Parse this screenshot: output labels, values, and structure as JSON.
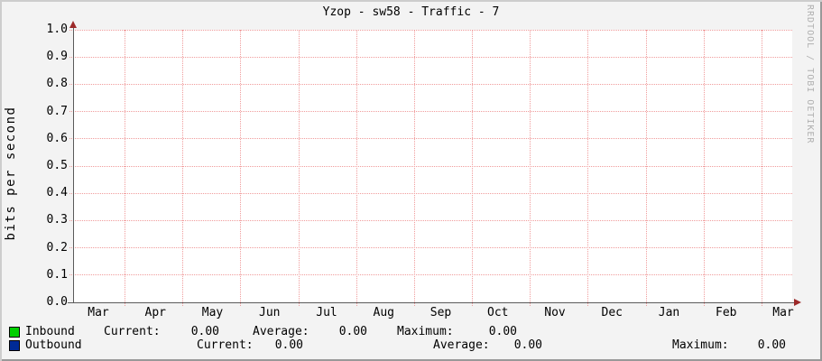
{
  "title": "Yzop - sw58 - Traffic - 7",
  "watermark": "RRDTOOL / TOBI OETIKER",
  "colors": {
    "background": "#f3f3f3",
    "canvas": "#ffffff",
    "grid": "#f09c9c",
    "axis": "#5a5a5a",
    "arrow": "#9c2a2a",
    "inbound": "#00cf00",
    "outbound": "#002a97",
    "watermark_text": "#b0b0b0"
  },
  "chart_data": {
    "type": "line",
    "title": "Yzop - sw58 - Traffic - 7",
    "xlabel": "",
    "ylabel": "bits per second",
    "ylim": [
      0.0,
      1.0
    ],
    "ytick_step": 0.1,
    "ytick_labels": [
      "0.0",
      "0.1",
      "0.2",
      "0.3",
      "0.4",
      "0.5",
      "0.6",
      "0.7",
      "0.8",
      "0.9",
      "1.0"
    ],
    "x_months": [
      "Mar",
      "Apr",
      "May",
      "Jun",
      "Jul",
      "Aug",
      "Sep",
      "Oct",
      "Nov",
      "Dec",
      "Jan",
      "Feb",
      "Mar"
    ],
    "grid": true,
    "legend_position": "bottom",
    "series": [
      {
        "name": "Inbound",
        "color": "#00cf00",
        "values": [],
        "current": 0.0,
        "average": 0.0,
        "maximum": 0.0
      },
      {
        "name": "Outbound",
        "color": "#002a97",
        "values": [],
        "current": 0.0,
        "average": 0.0,
        "maximum": 0.0
      }
    ]
  },
  "legend": {
    "rows": [
      {
        "name": "Inbound",
        "current_label": "Current:",
        "current": "0.00",
        "average_label": "Average:",
        "average": "0.00",
        "maximum_label": "Maximum:",
        "maximum": "0.00"
      },
      {
        "name": "Outbound",
        "current_label": "Current:",
        "current": "0.00",
        "average_label": "Average:",
        "average": "0.00",
        "maximum_label": "Maximum:",
        "maximum": "0.00"
      }
    ]
  }
}
